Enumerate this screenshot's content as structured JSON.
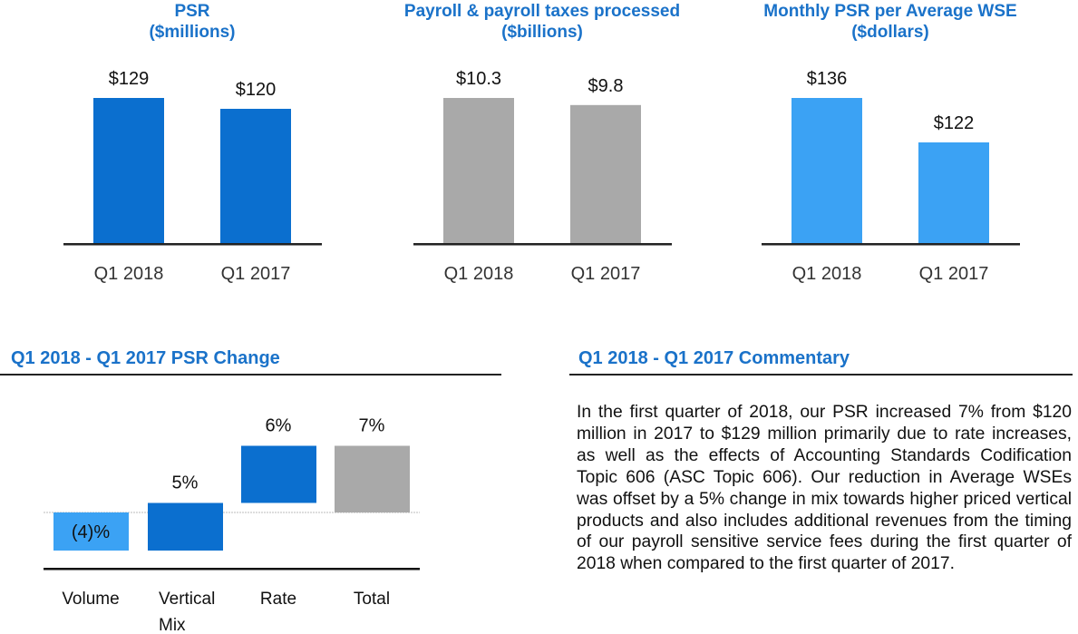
{
  "colors": {
    "dark_blue": "#0b6fcf",
    "light_blue": "#3ba2f4",
    "gray": "#a9a9a9",
    "header_blue": "#1a72c9"
  },
  "chart_data": [
    {
      "type": "bar",
      "title": "PSR\n($millions)",
      "title_lines": [
        "PSR",
        "($millions)"
      ],
      "categories": [
        "Q1 2018",
        "Q1 2017"
      ],
      "values": [
        129,
        120
      ],
      "labels": [
        "$129",
        "$120"
      ],
      "ylim": [
        8,
        129
      ],
      "color": "#0b6fcf"
    },
    {
      "type": "bar",
      "title": "Payroll & payroll taxes processed\n($billions)",
      "title_lines": [
        "Payroll & payroll taxes processed",
        "($billions)"
      ],
      "categories": [
        "Q1 2018",
        "Q1 2017"
      ],
      "values": [
        10.3,
        9.8
      ],
      "labels": [
        "$10.3",
        "$9.8"
      ],
      "ylim": [
        0,
        10.3
      ],
      "color": "#a9a9a9"
    },
    {
      "type": "bar",
      "title": "Monthly PSR per Average WSE\n($dollars)",
      "title_lines": [
        "Monthly PSR per Average WSE",
        "($dollars)"
      ],
      "categories": [
        "Q1 2018",
        "Q1 2017"
      ],
      "values": [
        136,
        122
      ],
      "labels": [
        "$136",
        "$122"
      ],
      "ylim": [
        90,
        136
      ],
      "color": "#3ba2f4"
    },
    {
      "type": "bar",
      "subtype": "waterfall",
      "title": "Q1 2018 - Q1 2017 PSR Change",
      "categories": [
        "Volume",
        "Vertical Mix",
        " Rate",
        "Total"
      ],
      "category_lines": [
        [
          "Volume"
        ],
        [
          "Vertical",
          "Mix"
        ],
        [
          "Rate"
        ],
        [
          "Total"
        ]
      ],
      "values": [
        -4,
        5,
        6,
        7
      ],
      "labels": [
        "(4)%",
        "5%",
        "6%",
        "7%"
      ],
      "colors": [
        "#3ba2f4",
        "#0b6fcf",
        "#0b6fcf",
        "#a9a9a9"
      ]
    }
  ],
  "commentary": {
    "title": "Q1 2018 - Q1 2017 Commentary",
    "text": "In the first quarter of 2018, our PSR increased 7% from $120 million in 2017 to $129 million primarily due to rate increases, as well as the effects of Accounting Standards Codification Topic 606 (ASC Topic 606). Our reduction in Average WSEs was offset by a 5% change in mix towards higher priced vertical products and also includes additional revenues from the timing of our payroll sensitive service fees during the first quarter of 2018 when compared to the first quarter of 2017."
  }
}
